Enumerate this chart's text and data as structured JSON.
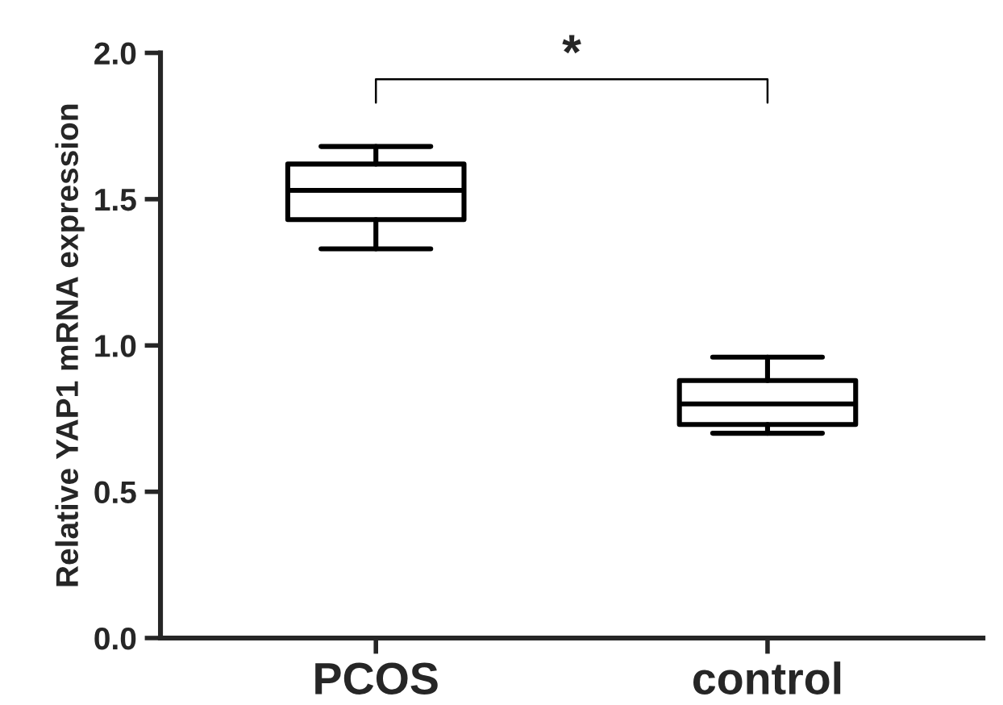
{
  "chart_data": {
    "type": "box",
    "ylabel": "Relative YAP1 mRNA expression",
    "categories": [
      "PCOS",
      "control"
    ],
    "boxes": [
      {
        "low": 1.33,
        "q1": 1.43,
        "median": 1.53,
        "q3": 1.62,
        "high": 1.68
      },
      {
        "low": 0.7,
        "q1": 0.73,
        "median": 0.8,
        "q3": 0.88,
        "high": 0.96
      }
    ],
    "ylim": [
      0,
      2.0
    ],
    "yticks": [
      {
        "value": 0,
        "label": "0.0"
      },
      {
        "value": 0.5,
        "label": "0.5"
      },
      {
        "value": 1.0,
        "label": "1.0"
      },
      {
        "value": 1.5,
        "label": "1.5"
      },
      {
        "value": 2.0,
        "label": "2.0"
      }
    ],
    "annotations": [
      "*"
    ],
    "grid": false
  }
}
